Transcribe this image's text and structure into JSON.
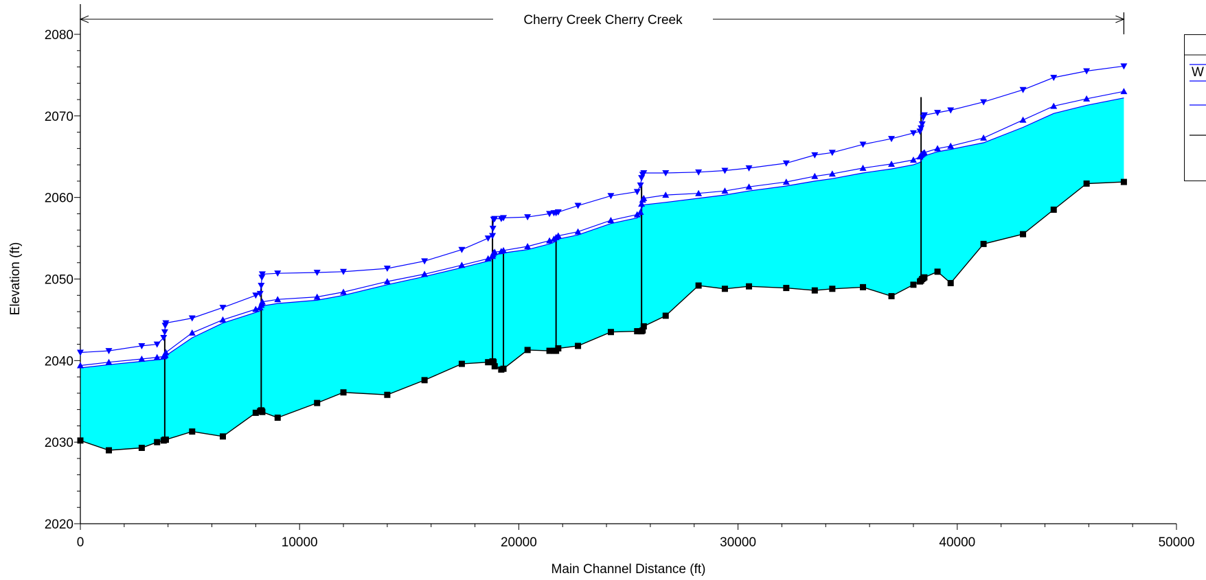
{
  "chart_data": {
    "type": "line",
    "title": "",
    "reach_label": "Cherry Creek Cherry Creek",
    "xlabel": "Main Channel Distance (ft)",
    "ylabel": "Elevation (ft)",
    "xlim": [
      0,
      50000
    ],
    "ylim": [
      2020,
      2080
    ],
    "x_ticks": [
      "0",
      "10000",
      "20000",
      "30000",
      "40000",
      "50000"
    ],
    "y_ticks": [
      "2020",
      "2030",
      "2040",
      "2050",
      "2060",
      "2070",
      "2080"
    ],
    "legend_placement": "top-right (clipped)",
    "legend_entries": [
      {
        "label": "",
        "color": "#0000ff"
      },
      {
        "label": "W",
        "color": "#0000ff"
      },
      {
        "label": "",
        "color": "#0000ff"
      },
      {
        "label": "",
        "color": "#000000"
      }
    ],
    "colors": {
      "fill": "#00ffff",
      "profile": "#0000ff",
      "ground": "#000000"
    },
    "series": [
      {
        "marker": "triangle-down",
        "color": "#0000ff",
        "x": [
          0,
          1300,
          2800,
          3500,
          3800,
          3850,
          3870,
          3900,
          5100,
          6500,
          8000,
          8200,
          8250,
          8280,
          8300,
          9000,
          10800,
          12000,
          14000,
          15700,
          17400,
          18600,
          18800,
          18820,
          18850,
          18900,
          19200,
          19300,
          20400,
          21400,
          21600,
          21700,
          21800,
          22700,
          24200,
          25400,
          25550,
          25600,
          25650,
          25700,
          26700,
          28200,
          29400,
          30500,
          32200,
          33500,
          34300,
          35700,
          37000,
          38000,
          38300,
          38350,
          38400,
          38450,
          38500,
          39100,
          39700,
          41200,
          43000,
          44400,
          45900,
          47600
        ],
        "y": [
          2041.0,
          2041.2,
          2041.8,
          2042.0,
          2042.8,
          2043.5,
          2044.3,
          2044.6,
          2045.2,
          2046.5,
          2048.0,
          2048.2,
          2049.2,
          2050.2,
          2050.6,
          2050.7,
          2050.8,
          2050.9,
          2051.3,
          2052.2,
          2053.6,
          2055.0,
          2055.3,
          2056.2,
          2057.3,
          2057.4,
          2057.4,
          2057.5,
          2057.6,
          2058.0,
          2058.1,
          2058.1,
          2058.2,
          2059.0,
          2060.2,
          2060.7,
          2061.5,
          2062.4,
          2062.8,
          2063.0,
          2063.0,
          2063.1,
          2063.3,
          2063.6,
          2064.2,
          2065.2,
          2065.5,
          2066.5,
          2067.2,
          2067.9,
          2068.1,
          2068.5,
          2069.0,
          2069.8,
          2070.1,
          2070.4,
          2070.7,
          2071.7,
          2073.2,
          2074.7,
          2075.5,
          2076.1
        ]
      },
      {
        "marker": "triangle-up",
        "color": "#0000ff",
        "x": [
          0,
          1300,
          2800,
          3500,
          3800,
          3850,
          3870,
          3900,
          5100,
          6500,
          8000,
          8200,
          8250,
          8280,
          8300,
          9000,
          10800,
          12000,
          14000,
          15700,
          17400,
          18600,
          18800,
          18820,
          18850,
          18900,
          19200,
          19300,
          20400,
          21400,
          21600,
          21700,
          21800,
          22700,
          24200,
          25400,
          25550,
          25600,
          25650,
          25700,
          26700,
          28200,
          29400,
          30500,
          32200,
          33500,
          34300,
          35700,
          37000,
          38000,
          38300,
          38350,
          38400,
          38450,
          38500,
          39100,
          39700,
          41200,
          43000,
          44400,
          45900,
          47600
        ],
        "y": [
          2039.4,
          2039.8,
          2040.2,
          2040.4,
          2040.5,
          2040.6,
          2040.7,
          2041.0,
          2043.4,
          2045.0,
          2046.3,
          2046.5,
          2046.8,
          2047.0,
          2047.2,
          2047.5,
          2047.8,
          2048.4,
          2049.7,
          2050.6,
          2051.7,
          2052.5,
          2052.8,
          2053.0,
          2053.2,
          2053.3,
          2053.4,
          2053.5,
          2054.0,
          2054.7,
          2054.9,
          2055.1,
          2055.3,
          2055.8,
          2057.2,
          2057.9,
          2058.2,
          2059.2,
          2059.7,
          2059.9,
          2060.3,
          2060.5,
          2060.8,
          2061.3,
          2061.9,
          2062.6,
          2062.9,
          2063.6,
          2064.1,
          2064.6,
          2065.0,
          2065.2,
          2065.3,
          2065.4,
          2065.5,
          2066.0,
          2066.3,
          2067.3,
          2069.5,
          2071.2,
          2072.1,
          2073.0
        ]
      },
      {
        "marker": "none",
        "color": "#0000ff",
        "x": [
          0,
          1300,
          2800,
          3500,
          3800,
          3850,
          3870,
          3900,
          5100,
          6500,
          8000,
          8200,
          8250,
          8280,
          8300,
          9000,
          10800,
          12000,
          14000,
          15700,
          17400,
          18600,
          18800,
          18820,
          18850,
          18900,
          19200,
          19300,
          20400,
          21400,
          21600,
          21700,
          21800,
          22700,
          24200,
          25400,
          25550,
          25600,
          25650,
          25700,
          26700,
          28200,
          29400,
          30500,
          32200,
          33500,
          34300,
          35700,
          37000,
          38000,
          38300,
          38350,
          38400,
          38450,
          38500,
          39100,
          39700,
          41200,
          43000,
          44400,
          45900,
          47600
        ],
        "y": [
          2039.1,
          2039.5,
          2039.9,
          2040.1,
          2040.2,
          2040.3,
          2040.4,
          2040.6,
          2042.8,
          2044.6,
          2045.9,
          2046.1,
          2046.3,
          2046.5,
          2046.7,
          2047.0,
          2047.4,
          2048.0,
          2049.3,
          2050.3,
          2051.4,
          2052.2,
          2052.5,
          2052.7,
          2052.9,
          2053.0,
          2053.1,
          2053.2,
          2053.6,
          2054.3,
          2054.5,
          2054.7,
          2054.9,
          2055.4,
          2056.8,
          2057.5,
          2057.8,
          2058.6,
          2058.9,
          2059.1,
          2059.4,
          2059.9,
          2060.3,
          2060.8,
          2061.4,
          2062.0,
          2062.3,
          2063.0,
          2063.5,
          2064.0,
          2064.3,
          2064.5,
          2064.7,
          2064.9,
          2065.1,
          2065.6,
          2065.9,
          2066.7,
          2068.6,
          2070.3,
          2071.3,
          2072.2
        ]
      },
      {
        "marker": "square",
        "color": "#000000",
        "x": [
          0,
          1300,
          2800,
          3500,
          3800,
          3850,
          3870,
          3900,
          5100,
          6500,
          8000,
          8200,
          8250,
          8280,
          8300,
          9000,
          10800,
          12000,
          14000,
          15700,
          17400,
          18600,
          18800,
          18820,
          18850,
          18900,
          19200,
          19300,
          20400,
          21400,
          21600,
          21700,
          21800,
          22700,
          24200,
          25400,
          25550,
          25600,
          25650,
          25700,
          26700,
          28200,
          29400,
          30500,
          32200,
          33500,
          34300,
          35700,
          37000,
          38000,
          38300,
          38350,
          38400,
          38450,
          38500,
          39100,
          39700,
          41200,
          43000,
          44400,
          45900,
          47600
        ],
        "y": [
          2030.2,
          2029.0,
          2029.3,
          2030.0,
          2030.2,
          2030.3,
          2030.3,
          2030.3,
          2031.3,
          2030.7,
          2033.6,
          2033.8,
          2033.9,
          2033.8,
          2033.7,
          2033.0,
          2034.8,
          2036.1,
          2035.8,
          2037.6,
          2039.6,
          2039.8,
          2039.9,
          2039.9,
          2039.8,
          2039.3,
          2038.9,
          2039.0,
          2041.3,
          2041.2,
          2041.2,
          2041.2,
          2041.5,
          2041.8,
          2043.5,
          2043.6,
          2043.6,
          2043.6,
          2043.7,
          2044.2,
          2045.5,
          2049.2,
          2048.8,
          2049.1,
          2048.9,
          2048.6,
          2048.8,
          2049.0,
          2047.9,
          2049.3,
          2049.7,
          2049.8,
          2050.0,
          2050.1,
          2050.2,
          2050.9,
          2049.5,
          2054.3,
          2055.5,
          2058.5,
          2061.7,
          2061.9
        ]
      }
    ],
    "structures": [
      {
        "x": 3850,
        "top": 2043.0,
        "bottom": 2030.3
      },
      {
        "x": 8250,
        "top": 2049.0,
        "bottom": 2033.9
      },
      {
        "x": 18800,
        "top": 2057.5,
        "bottom": 2039.8
      },
      {
        "x": 19300,
        "top": 2053.5,
        "bottom": 2039.0
      },
      {
        "x": 21700,
        "top": 2055.0,
        "bottom": 2041.2
      },
      {
        "x": 25600,
        "top": 2061.5,
        "bottom": 2043.6
      },
      {
        "x": 38350,
        "top": 2072.3,
        "bottom": 2049.8
      }
    ]
  }
}
